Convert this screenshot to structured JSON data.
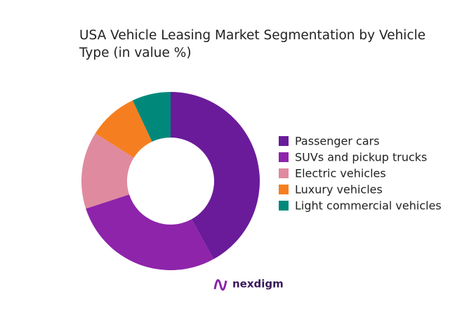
{
  "chart_data": {
    "type": "donut",
    "title": "USA Vehicle Leasing Market Segmentation by Vehicle Type (in value %)",
    "categories": [
      "Passenger cars",
      "SUVs and pickup trucks",
      "Electric vehicles",
      "Luxury vehicles",
      "Light commercial vehicles"
    ],
    "values": [
      42,
      28,
      14,
      9,
      7
    ],
    "colors": [
      "#6a1b9a",
      "#8e24aa",
      "#e08a9f",
      "#f57f20",
      "#00897b"
    ],
    "legend": "right",
    "brand": "nexdigm"
  }
}
